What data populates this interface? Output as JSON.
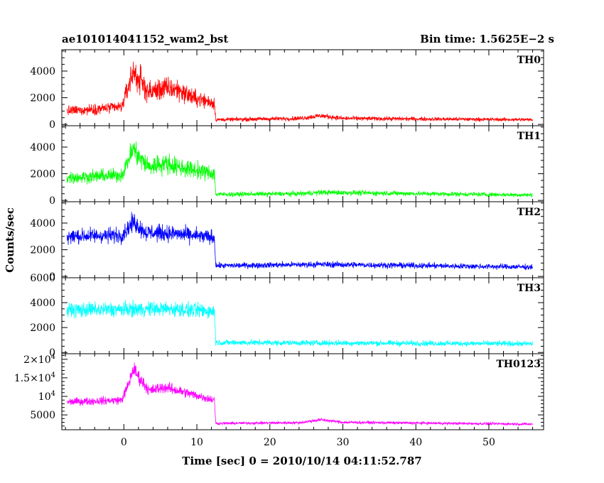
{
  "chart_data": {
    "type": "line",
    "title_left": "ae101014041152_wam2_bst",
    "title_right": "Bin time: 1.5625E−2 s",
    "xlabel": "Time [sec] 0 = 2010/10/14 04:11:52.787",
    "ylabel": "Counts/sec",
    "xlim": [
      -8.5,
      57.5
    ],
    "x_ticks": [
      0,
      10,
      20,
      30,
      40,
      50
    ],
    "x_tick_labels": [
      "0",
      "10",
      "20",
      "30",
      "40",
      "50"
    ],
    "x_minor_step": 2,
    "panels": [
      {
        "name": "TH0",
        "color": "#ff0000",
        "ylim": [
          -100,
          5600
        ],
        "y_ticks": [
          0,
          2000,
          4000
        ],
        "y_tick_labels": [
          "0",
          "2000",
          "4000"
        ],
        "y_minor_step": 500,
        "profile": [
          [
            -7.8,
            1000,
            400
          ],
          [
            -0.3,
            1300,
            480
          ],
          [
            0.6,
            2800,
            900
          ],
          [
            1.3,
            4000,
            1300
          ],
          [
            2.1,
            3300,
            1200
          ],
          [
            3.5,
            2400,
            900
          ],
          [
            5.5,
            2700,
            950
          ],
          [
            7.5,
            2600,
            900
          ],
          [
            9.5,
            2000,
            700
          ],
          [
            12.4,
            1600,
            550
          ],
          [
            12.6,
            350,
            150
          ],
          [
            24,
            450,
            180
          ],
          [
            27,
            650,
            220
          ],
          [
            30,
            450,
            180
          ],
          [
            56,
            350,
            140
          ]
        ]
      },
      {
        "name": "TH1",
        "color": "#00ff00",
        "ylim": [
          -100,
          5600
        ],
        "y_ticks": [
          0,
          2000,
          4000
        ],
        "y_tick_labels": [
          "0",
          "2000",
          "4000"
        ],
        "y_minor_step": 500,
        "profile": [
          [
            -7.8,
            1700,
            500
          ],
          [
            -0.3,
            1900,
            550
          ],
          [
            0.6,
            3000,
            800
          ],
          [
            1.3,
            3900,
            1000
          ],
          [
            2.1,
            3200,
            900
          ],
          [
            3.5,
            2500,
            800
          ],
          [
            5.5,
            2800,
            850
          ],
          [
            7.5,
            2500,
            750
          ],
          [
            12.4,
            2000,
            600
          ],
          [
            12.6,
            450,
            180
          ],
          [
            24,
            500,
            200
          ],
          [
            27,
            600,
            220
          ],
          [
            56,
            400,
            170
          ]
        ]
      },
      {
        "name": "TH2",
        "color": "#0000ff",
        "ylim": [
          -100,
          5600
        ],
        "y_ticks": [
          0,
          2000,
          4000
        ],
        "y_tick_labels": [
          "0",
          "2000",
          "4000"
        ],
        "y_minor_step": 500,
        "profile": [
          [
            -7.8,
            3000,
            600
          ],
          [
            -0.3,
            3100,
            650
          ],
          [
            1.3,
            4100,
            750
          ],
          [
            3.0,
            3300,
            700
          ],
          [
            7.0,
            3200,
            650
          ],
          [
            12.4,
            2900,
            600
          ],
          [
            12.6,
            800,
            230
          ],
          [
            27,
            900,
            250
          ],
          [
            56,
            700,
            220
          ]
        ]
      },
      {
        "name": "TH3",
        "color": "#00ffff",
        "ylim": [
          -100,
          6000
        ],
        "y_ticks": [
          0,
          2000,
          4000,
          6000
        ],
        "y_tick_labels": [
          "0",
          "2000",
          "4000",
          "6000"
        ],
        "y_minor_step": 500,
        "profile": [
          [
            -7.8,
            3400,
            650
          ],
          [
            6,
            3500,
            650
          ],
          [
            12.4,
            3300,
            650
          ],
          [
            12.6,
            800,
            250
          ],
          [
            56,
            700,
            230
          ]
        ]
      },
      {
        "name": "TH0123",
        "color": "#ff00ff",
        "ylim": [
          1000,
          21500
        ],
        "y_ticks": [
          5000,
          10000,
          15000,
          20000
        ],
        "y_tick_labels": [
          "5000",
          "10^4",
          "1.5×10^4",
          "2×10^4"
        ],
        "y_minor_step": 1000,
        "profile": [
          [
            -7.8,
            8500,
            1100
          ],
          [
            -0.3,
            9000,
            1200
          ],
          [
            0.6,
            13000,
            1800
          ],
          [
            1.3,
            17500,
            2300
          ],
          [
            2.1,
            15000,
            2000
          ],
          [
            3.5,
            11500,
            1600
          ],
          [
            5.5,
            12500,
            1700
          ],
          [
            7.5,
            11500,
            1500
          ],
          [
            12.4,
            9000,
            1200
          ],
          [
            12.6,
            2700,
            400
          ],
          [
            24,
            2900,
            420
          ],
          [
            27,
            3700,
            500
          ],
          [
            30,
            3000,
            420
          ],
          [
            56,
            2500,
            380
          ]
        ]
      }
    ]
  }
}
